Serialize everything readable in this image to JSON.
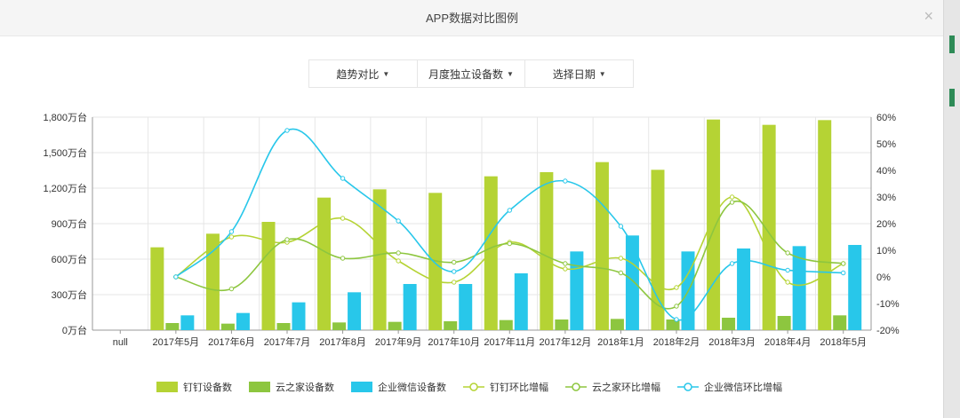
{
  "window": {
    "title": "APP数据对比图例"
  },
  "controls": [
    {
      "label": "趋势对比"
    },
    {
      "label": "月度独立设备数"
    },
    {
      "label": "选择日期"
    }
  ],
  "colors": {
    "dingding": "#b5d334",
    "yunzhijia": "#8dc63f",
    "wechat_work": "#28c7ea"
  },
  "chart_data": {
    "type": "bar",
    "categories": [
      "null",
      "2017年5月",
      "2017年6月",
      "2017年7月",
      "2017年8月",
      "2017年9月",
      "2017年10月",
      "2017年11月",
      "2017年12月",
      "2018年1月",
      "2018年2月",
      "2018年3月",
      "2018年4月",
      "2018年5月"
    ],
    "y_left": {
      "ticks": [
        "0万台",
        "300万台",
        "600万台",
        "900万台",
        "1,200万台",
        "1,500万台",
        "1,800万台"
      ],
      "min": 0,
      "max": 1800
    },
    "y_right": {
      "ticks": [
        "-20%",
        "-10%",
        "0%",
        "10%",
        "20%",
        "30%",
        "40%",
        "50%",
        "60%"
      ],
      "min": -20,
      "max": 60
    },
    "bar_series": [
      {
        "name": "钉钉设备数",
        "color": "#b5d334",
        "values": [
          null,
          700,
          815,
          915,
          1120,
          1190,
          1160,
          1300,
          1335,
          1420,
          1355,
          1780,
          1735,
          1775
        ]
      },
      {
        "name": "云之家设备数",
        "color": "#8dc63f",
        "values": [
          null,
          60,
          55,
          60,
          65,
          70,
          75,
          85,
          90,
          95,
          90,
          105,
          120,
          125
        ]
      },
      {
        "name": "企业微信设备数",
        "color": "#28c7ea",
        "values": [
          null,
          125,
          145,
          235,
          320,
          390,
          390,
          480,
          665,
          800,
          665,
          690,
          710,
          720
        ]
      }
    ],
    "line_series": [
      {
        "name": "钉钉环比增幅",
        "color": "#b5d334",
        "values": [
          null,
          0,
          15,
          13,
          22,
          6,
          -2,
          13,
          3,
          7,
          -4,
          30,
          -2,
          5
        ]
      },
      {
        "name": "云之家环比增幅",
        "color": "#8dc63f",
        "values": [
          null,
          0,
          -4.5,
          14,
          7,
          9,
          5.5,
          12.5,
          5,
          1.5,
          -11,
          28,
          9,
          5
        ]
      },
      {
        "name": "企业微信环比增幅",
        "color": "#28c7ea",
        "values": [
          null,
          0,
          17,
          55,
          37,
          21,
          2,
          25,
          36,
          19,
          -16,
          5,
          2.5,
          1.5
        ]
      }
    ],
    "grid": true,
    "legend_position": "bottom"
  }
}
